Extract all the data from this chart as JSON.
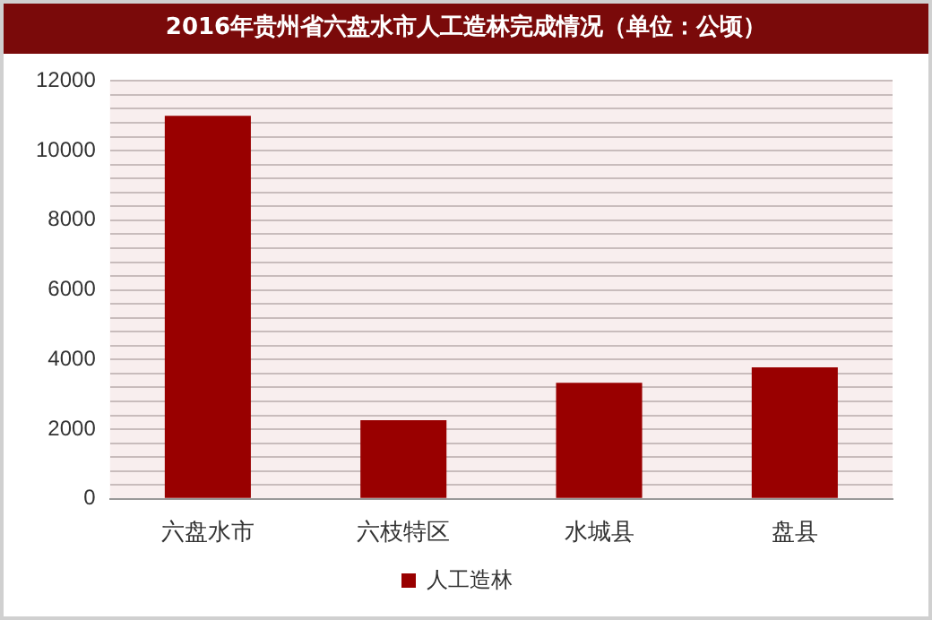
{
  "chart_data": {
    "type": "bar",
    "title": "2016年贵州省六盘水市人工造林完成情况（单位：公顷）",
    "categories": [
      "六盘水市",
      "六枝特区",
      "水城县",
      "盘县"
    ],
    "series": [
      {
        "name": "人工造林",
        "color": "#990000",
        "values": [
          11000,
          2260,
          3330,
          3780
        ]
      }
    ],
    "ylim": [
      0,
      12000
    ],
    "yticks": [
      0,
      {
        "value": 400,
        "label": null
      },
      {
        "value": 800,
        "label": null
      },
      {
        "value": 1200,
        "label": null
      },
      {
        "value": 1600,
        "label": null
      },
      2000,
      {
        "value": 2400,
        "label": null
      },
      {
        "value": 2800,
        "label": null
      },
      {
        "value": 3200,
        "label": null
      },
      {
        "value": 3600,
        "label": null
      },
      4000,
      {
        "value": 4400,
        "label": null
      },
      {
        "value": 4800,
        "label": null
      },
      {
        "value": 5200,
        "label": null
      },
      {
        "value": 5600,
        "label": null
      },
      6000,
      {
        "value": 6400,
        "label": null
      },
      {
        "value": 6800,
        "label": null
      },
      {
        "value": 7200,
        "label": null
      },
      {
        "value": 7600,
        "label": null
      },
      8000,
      {
        "value": 8400,
        "label": null
      },
      {
        "value": 8800,
        "label": null
      },
      {
        "value": 9200,
        "label": null
      },
      {
        "value": 9600,
        "label": null
      },
      10000,
      {
        "value": 10400,
        "label": null
      },
      {
        "value": 10800,
        "label": null
      },
      {
        "value": 11200,
        "label": null
      },
      {
        "value": 11600,
        "label": null
      },
      12000
    ],
    "grid": "y",
    "legend": "bottom"
  }
}
